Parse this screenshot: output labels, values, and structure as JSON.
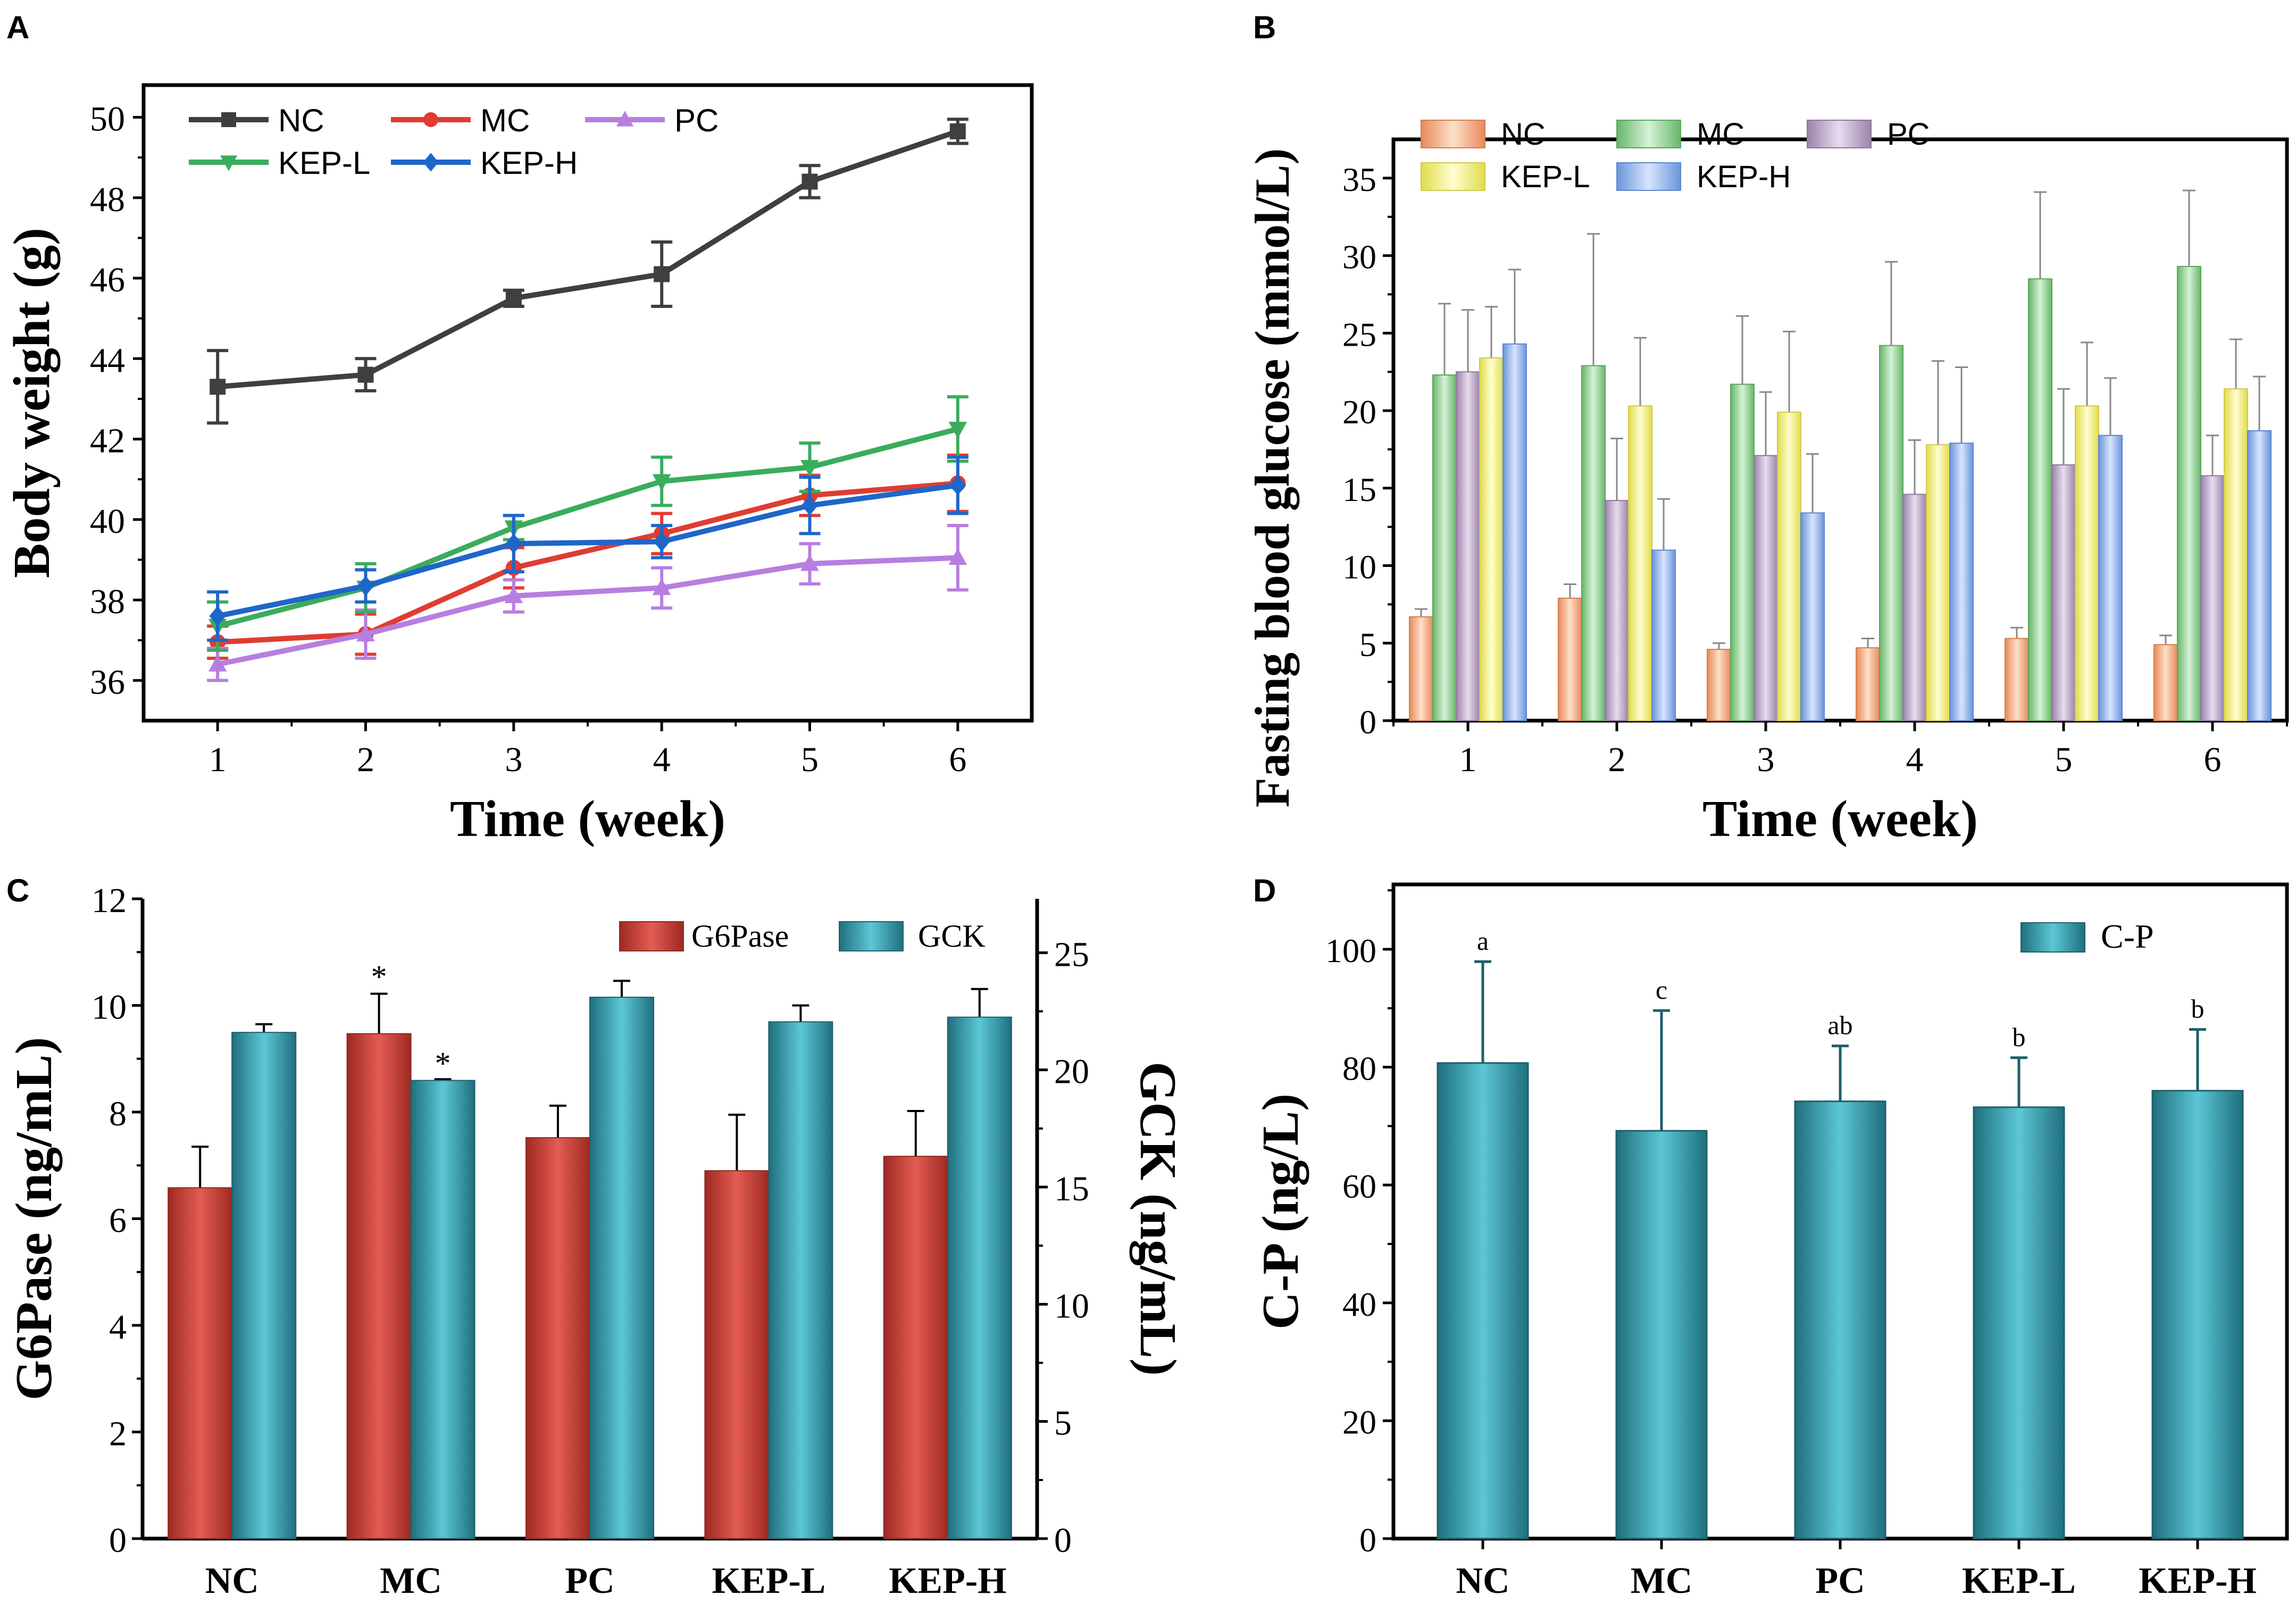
{
  "chart_data": [
    {
      "panel": "A",
      "type": "line",
      "xlabel": "Time (week)",
      "ylabel": "Body weight (g)",
      "x": [
        1,
        2,
        3,
        4,
        5,
        6
      ],
      "xlim": [
        0.5,
        6.5
      ],
      "ylim": [
        35,
        50.8
      ],
      "yticks": [
        36,
        38,
        40,
        42,
        44,
        46,
        48,
        50
      ],
      "legend": [
        "NC",
        "MC",
        "PC",
        "KEP-L",
        "KEP-H"
      ],
      "series": [
        {
          "name": "NC",
          "color": "#3f3f3f",
          "marker": "square",
          "values": [
            43.3,
            43.6,
            45.5,
            46.1,
            48.4,
            49.65
          ],
          "errors": [
            0.9,
            0.4,
            0.2,
            0.8,
            0.4,
            0.3
          ]
        },
        {
          "name": "MC",
          "color": "#e03c31",
          "marker": "circle",
          "values": [
            36.95,
            37.15,
            38.8,
            39.65,
            40.6,
            40.9
          ],
          "errors": [
            0.4,
            0.5,
            0.5,
            0.5,
            0.5,
            0.7
          ]
        },
        {
          "name": "PC",
          "color": "#b77ee0",
          "marker": "triangle-up",
          "values": [
            36.4,
            37.15,
            38.1,
            38.3,
            38.9,
            39.05
          ],
          "errors": [
            0.4,
            0.6,
            0.4,
            0.5,
            0.5,
            0.8
          ]
        },
        {
          "name": "KEP-L",
          "color": "#3aac5d",
          "marker": "triangle-down",
          "values": [
            37.35,
            38.3,
            39.8,
            40.95,
            41.3,
            42.25
          ],
          "errors": [
            0.6,
            0.6,
            0.3,
            0.6,
            0.6,
            0.8
          ]
        },
        {
          "name": "KEP-H",
          "color": "#1f66c9",
          "marker": "diamond",
          "values": [
            37.6,
            38.35,
            39.4,
            39.45,
            40.35,
            40.85
          ],
          "errors": [
            0.6,
            0.4,
            0.7,
            0.4,
            0.7,
            0.7
          ]
        }
      ]
    },
    {
      "panel": "B",
      "type": "bar",
      "xlabel": "Time (week)",
      "ylabel": "Fasting blood glucose (mmol/L)",
      "categories": [
        "1",
        "2",
        "3",
        "4",
        "5",
        "6"
      ],
      "ylim": [
        0,
        37.5
      ],
      "yticks": [
        0,
        5,
        10,
        15,
        20,
        25,
        30,
        35
      ],
      "legend": [
        "NC",
        "MC",
        "PC",
        "KEP-L",
        "KEP-H"
      ],
      "series": [
        {
          "name": "NC",
          "color": "#fbbd94",
          "values": [
            6.7,
            7.9,
            4.6,
            4.7,
            5.3,
            4.9
          ],
          "errors": [
            0.5,
            0.9,
            0.4,
            0.6,
            0.7,
            0.6
          ]
        },
        {
          "name": "MC",
          "color": "#a4dca5",
          "values": [
            22.3,
            22.9,
            21.7,
            24.2,
            28.5,
            29.3
          ],
          "errors": [
            4.6,
            8.5,
            4.4,
            5.4,
            5.6,
            4.9
          ]
        },
        {
          "name": "PC",
          "color": "#c7b3d2",
          "values": [
            22.5,
            14.2,
            17.1,
            14.6,
            16.5,
            15.8
          ],
          "errors": [
            4.0,
            4.0,
            4.1,
            3.5,
            4.9,
            2.6
          ]
        },
        {
          "name": "KEP-L",
          "color": "#fbf98f",
          "values": [
            23.4,
            20.3,
            19.9,
            17.8,
            20.3,
            21.4
          ],
          "errors": [
            3.3,
            4.4,
            5.2,
            5.4,
            4.1,
            3.2
          ]
        },
        {
          "name": "KEP-H",
          "color": "#9bbdf5",
          "values": [
            24.3,
            11.0,
            13.4,
            17.9,
            18.4,
            18.7
          ],
          "errors": [
            4.8,
            3.3,
            3.8,
            4.9,
            3.7,
            3.5
          ]
        }
      ]
    },
    {
      "panel": "C",
      "type": "bar",
      "ylabel": "G6Pase (ng/mL)",
      "ylabel_right": "GCK (ng/mL)",
      "categories": [
        "NC",
        "MC",
        "PC",
        "KEP-L",
        "KEP-H"
      ],
      "ylim": [
        0,
        12
      ],
      "yticks": [
        0,
        2,
        4,
        6,
        8,
        10,
        12
      ],
      "ylim_right": [
        0,
        27.3
      ],
      "yticks_right": [
        0,
        5,
        10,
        15,
        20,
        25
      ],
      "legend": [
        "G6Pase",
        "GCK"
      ],
      "series": [
        {
          "name": "G6Pase",
          "axis": "left",
          "color": "#d9534a",
          "values": [
            6.58,
            9.47,
            7.52,
            6.9,
            7.17
          ],
          "errors": [
            0.77,
            0.75,
            0.6,
            1.05,
            0.85
          ],
          "annotations": [
            "",
            "*",
            "",
            "",
            ""
          ]
        },
        {
          "name": "GCK",
          "axis": "right",
          "color": "#43b3c4",
          "values": [
            21.6,
            19.55,
            23.1,
            22.05,
            22.25
          ],
          "errors": [
            0.35,
            0.05,
            0.7,
            0.7,
            1.2
          ],
          "annotations": [
            "",
            "*",
            "",
            "",
            ""
          ]
        }
      ]
    },
    {
      "panel": "D",
      "type": "bar",
      "ylabel": "C-P (ng/L)",
      "categories": [
        "NC",
        "MC",
        "PC",
        "KEP-L",
        "KEP-H"
      ],
      "ylim": [
        0,
        111
      ],
      "yticks": [
        0,
        20,
        40,
        60,
        80,
        100
      ],
      "legend": [
        "C-P"
      ],
      "series": [
        {
          "name": "C-P",
          "color": "#43b3c4",
          "values": [
            80.7,
            69.2,
            74.2,
            73.2,
            76.0
          ],
          "errors": [
            17.2,
            20.4,
            9.4,
            8.4,
            10.4
          ],
          "annotations": [
            "a",
            "c",
            "ab",
            "b",
            "b"
          ]
        }
      ]
    }
  ]
}
